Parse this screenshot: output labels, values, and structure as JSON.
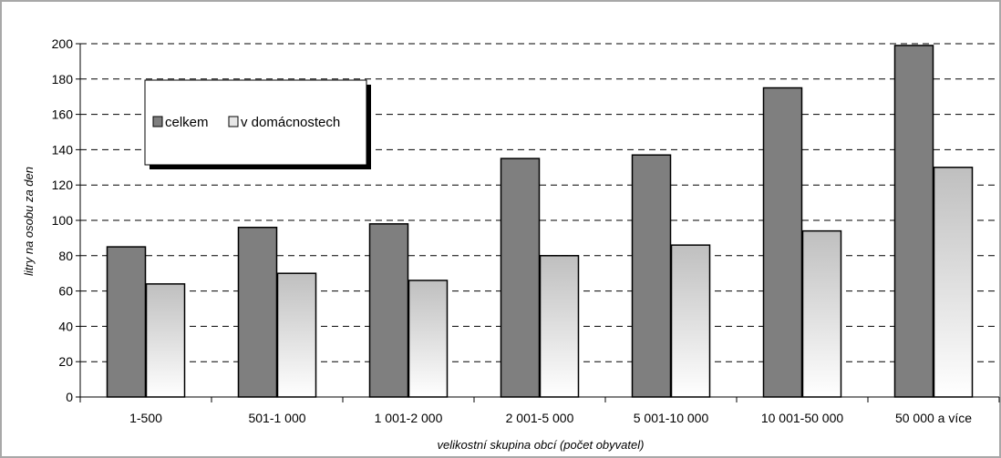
{
  "chart_data": {
    "type": "bar",
    "title": "",
    "xlabel": "velikostní skupina obcí (počet obyvatel)",
    "ylabel": "litry na osobu za den",
    "ylim": [
      0,
      200
    ],
    "yticks": [
      0,
      20,
      40,
      60,
      80,
      100,
      120,
      140,
      160,
      180,
      200
    ],
    "grid": true,
    "legend_position": "top-left",
    "categories": [
      "1-500",
      "501-1 000",
      "1 001-2 000",
      "2 001-5 000",
      "5 001-10 000",
      "10 001-50 000",
      "50 000 a více"
    ],
    "series": [
      {
        "name": "celkem",
        "values": [
          85,
          96,
          98,
          135,
          137,
          175,
          199
        ],
        "color": "#7f7f7f"
      },
      {
        "name": "v domácnostech",
        "values": [
          64,
          70,
          66,
          80,
          86,
          94,
          130
        ],
        "color": "#c8c8c8"
      }
    ]
  }
}
